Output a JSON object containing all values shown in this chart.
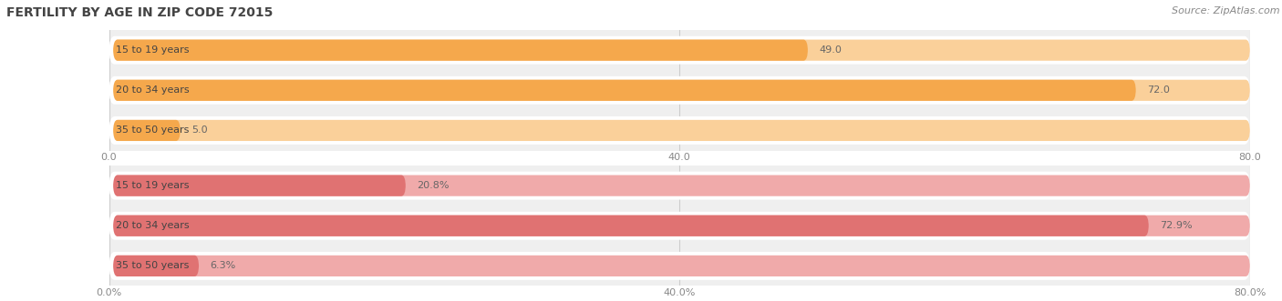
{
  "title": "FERTILITY BY AGE IN ZIP CODE 72015",
  "source": "Source: ZipAtlas.com",
  "top_chart": {
    "categories": [
      "15 to 19 years",
      "20 to 34 years",
      "35 to 50 years"
    ],
    "values": [
      49.0,
      72.0,
      5.0
    ],
    "xlim": [
      0,
      80
    ],
    "xticks": [
      0.0,
      40.0,
      80.0
    ],
    "xtick_labels": [
      "0.0",
      "40.0",
      "80.0"
    ],
    "bar_color": "#F5A84C",
    "bar_light_color": "#FAD09A",
    "pill_bg": "#FFFFFF",
    "row_bg": "#EFEFEF"
  },
  "bottom_chart": {
    "categories": [
      "15 to 19 years",
      "20 to 34 years",
      "35 to 50 years"
    ],
    "values": [
      20.8,
      72.9,
      6.3
    ],
    "xlim": [
      0,
      80
    ],
    "xticks": [
      0.0,
      40.0,
      80.0
    ],
    "xtick_labels": [
      "0.0%",
      "40.0%",
      "80.0%"
    ],
    "bar_color": "#E07272",
    "bar_light_color": "#F0AAAA",
    "pill_bg": "#FFFFFF",
    "row_bg": "#EFEFEF"
  },
  "title_fontsize": 10,
  "source_fontsize": 8,
  "label_fontsize": 8,
  "tick_fontsize": 8,
  "value_fontsize": 8
}
